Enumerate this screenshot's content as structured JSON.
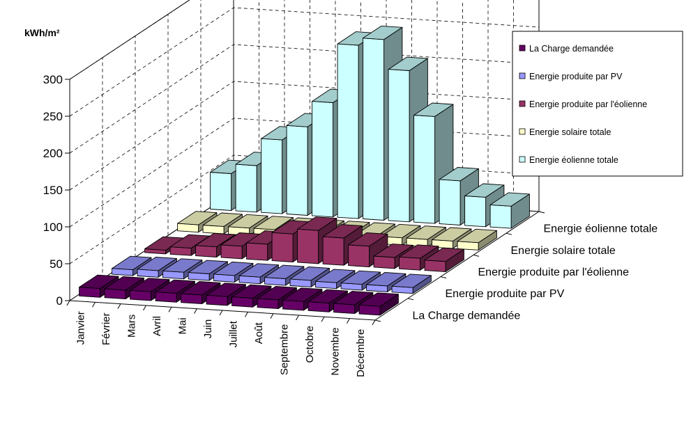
{
  "chart_data": {
    "type": "bar",
    "subtype": "3d-column",
    "unit_label": "kWh/m²",
    "ylim": [
      0,
      300
    ],
    "yticks": [
      "0",
      "50",
      "100",
      "150",
      "200",
      "250",
      "300"
    ],
    "categories": [
      "Janvier",
      "Février",
      "Mars",
      "Avril",
      "Mai",
      "Juin",
      "Juillet",
      "Août",
      "Septembre",
      "Octobre",
      "Novembre",
      "Décembre"
    ],
    "series": [
      {
        "name": "La Charge demandée",
        "color": "#660066",
        "values": [
          12,
          12,
          12,
          12,
          12,
          12,
          12,
          12,
          12,
          12,
          12,
          12
        ]
      },
      {
        "name": "Energie produite par PV",
        "color": "#9999ff",
        "values": [
          8,
          9,
          9,
          9,
          9,
          9,
          9,
          9,
          8,
          8,
          8,
          8
        ]
      },
      {
        "name": "Energie produite par l'éolienne",
        "color": "#993366",
        "values": [
          5,
          10,
          14,
          17,
          22,
          38,
          45,
          37,
          28,
          15,
          16,
          14
        ]
      },
      {
        "name": "Energie solaire totale",
        "color": "#ffffcc",
        "values": [
          10,
          10,
          10,
          10,
          10,
          10,
          10,
          10,
          10,
          10,
          10,
          10
        ]
      },
      {
        "name": "Energie éolienne totale",
        "color": "#ccffff",
        "values": [
          50,
          63,
          100,
          120,
          155,
          235,
          245,
          205,
          145,
          60,
          40,
          30
        ]
      }
    ],
    "legend_position": "right",
    "grid": true
  }
}
